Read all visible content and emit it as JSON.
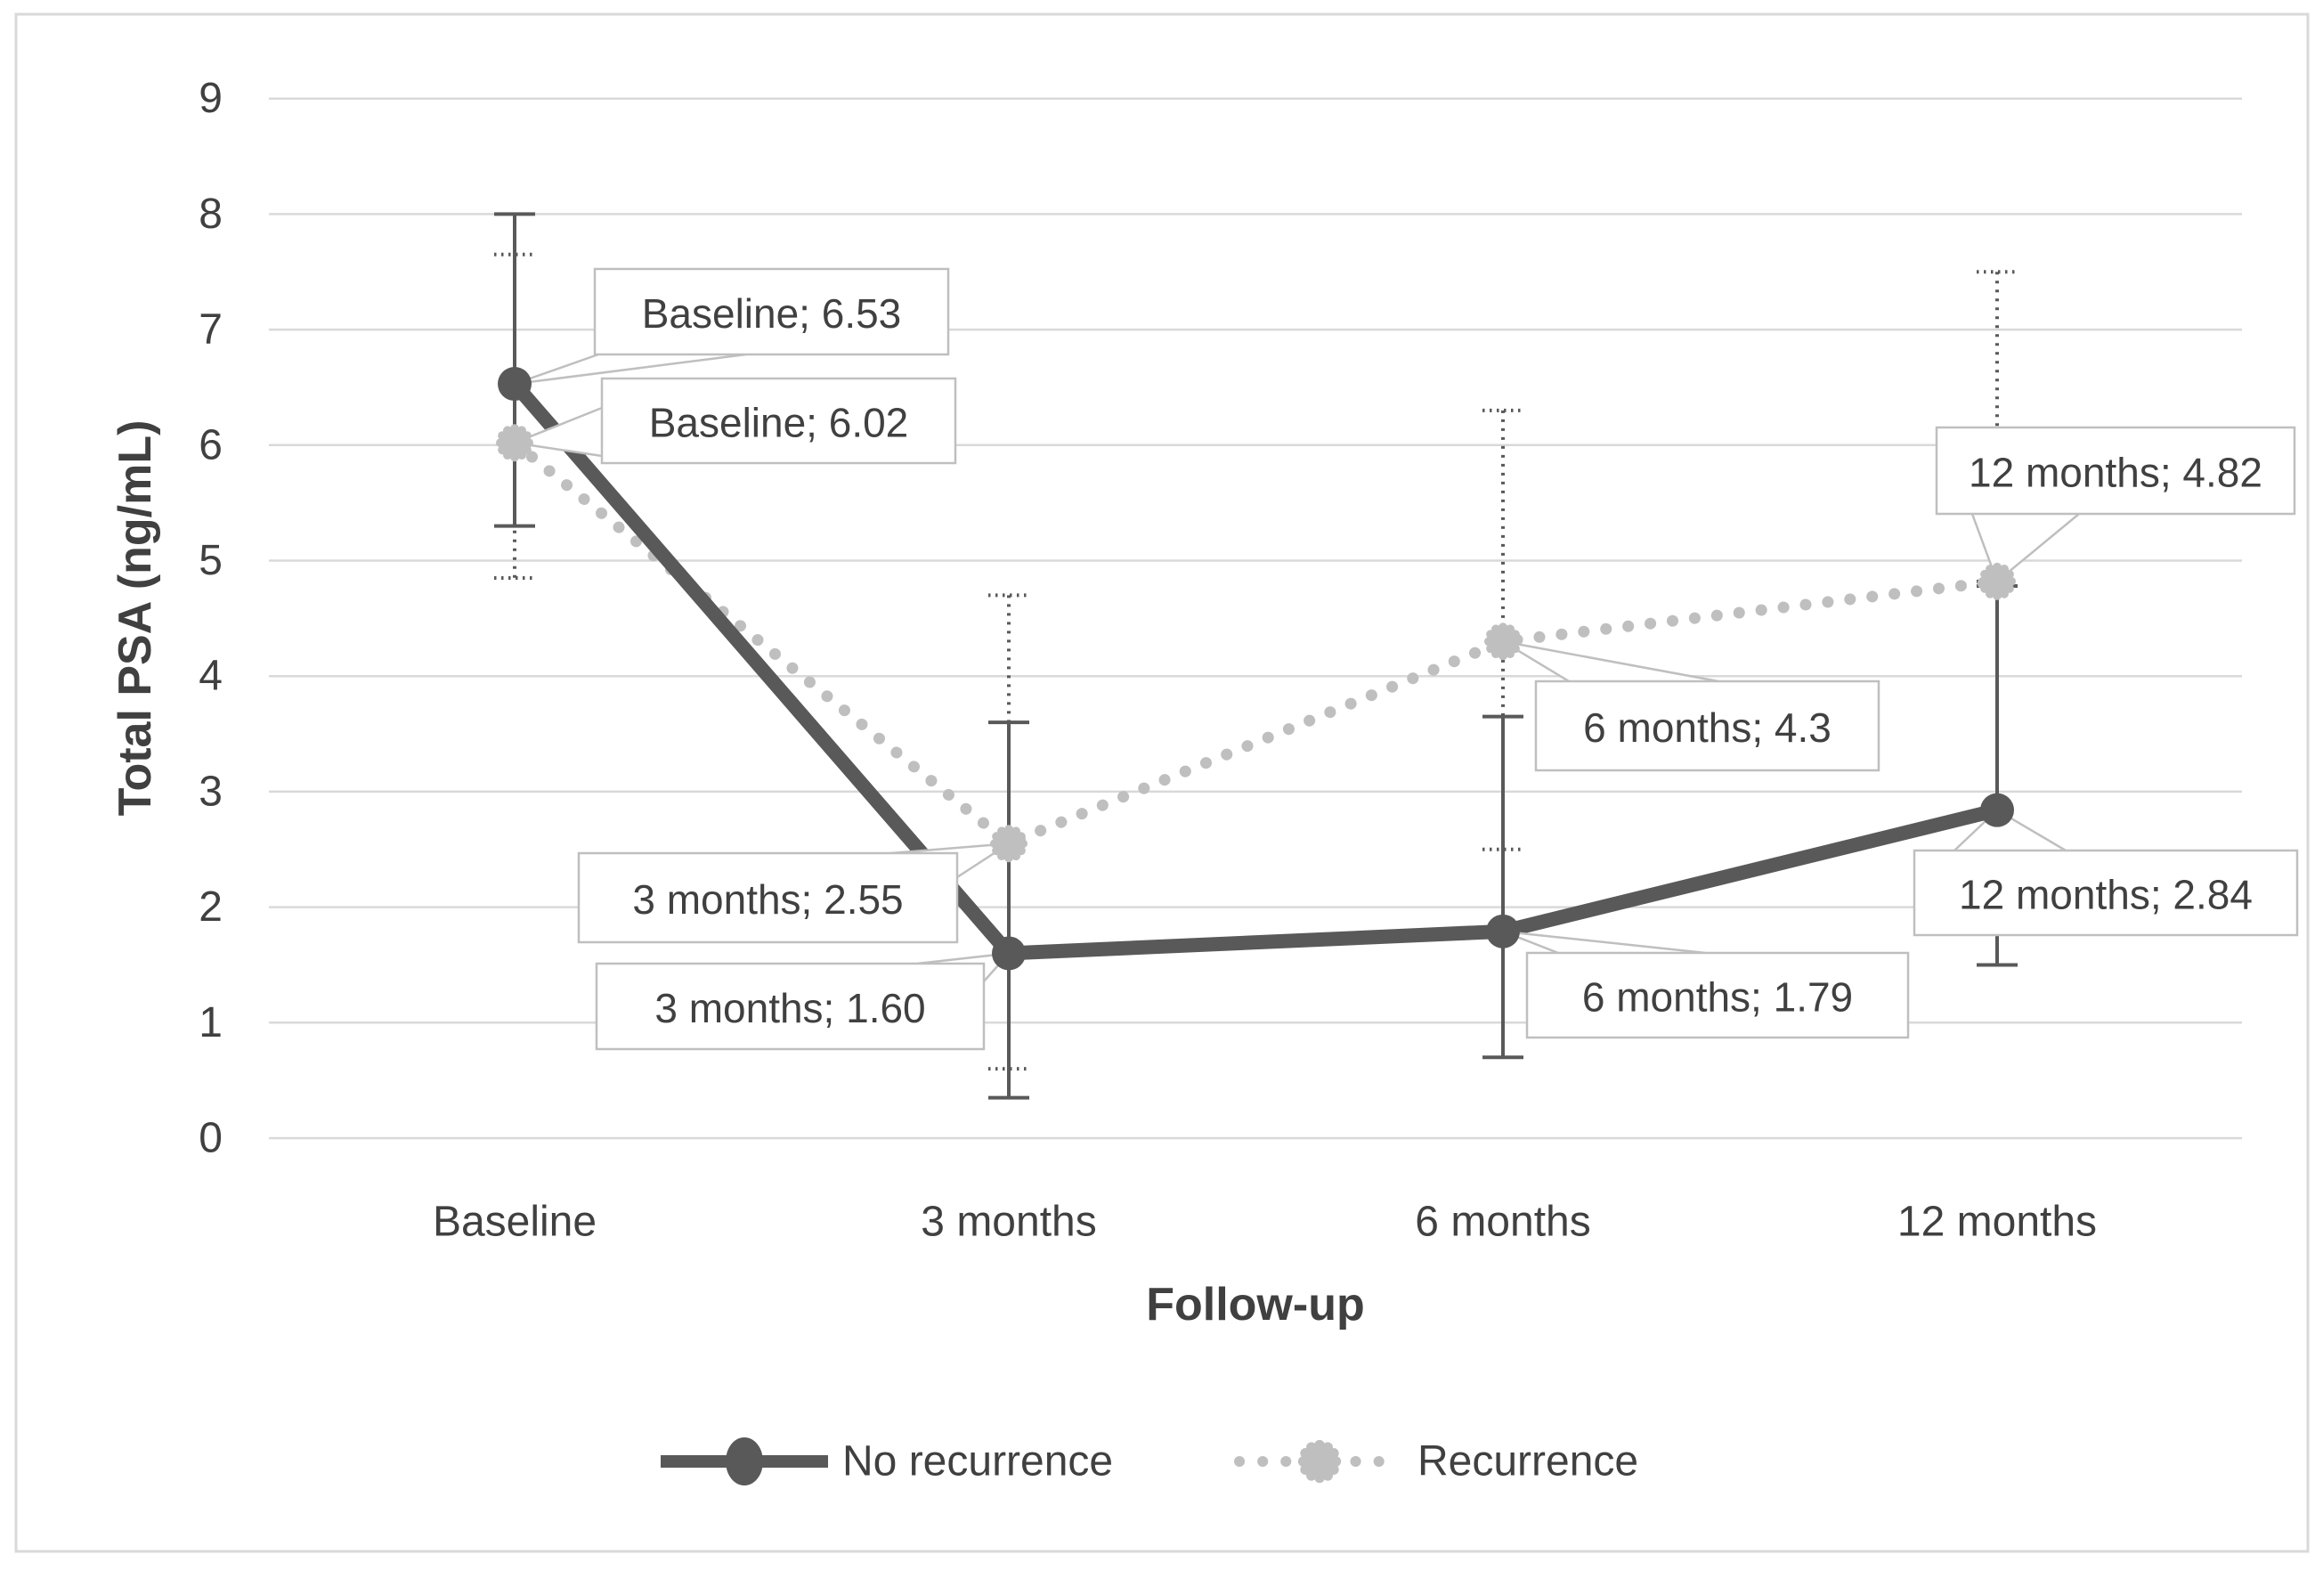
{
  "figure": {
    "kind": "excel-style-line-chart-screenshot",
    "background": "#ffffff",
    "border_color": "#d9d9d9"
  },
  "chart_data": {
    "type": "line",
    "title": "",
    "xlabel": "Follow-up",
    "ylabel": "Total PSA (ng/mL)",
    "categories": [
      "Baseline",
      "3 months",
      "6 months",
      "12 months"
    ],
    "y_axis": {
      "min": 0,
      "max": 9,
      "step": 1,
      "tick_labels": [
        "0",
        "1",
        "2",
        "3",
        "4",
        "5",
        "6",
        "7",
        "8",
        "9"
      ],
      "grid": true
    },
    "grid_color": "#d9d9d9",
    "text_color": "#404040",
    "series": [
      {
        "name": "No recurrence",
        "color": "#595959",
        "line_style": "solid",
        "marker": "circle",
        "values": [
          6.53,
          1.6,
          1.79,
          2.84
        ],
        "error_low": [
          5.3,
          0.35,
          0.7,
          1.5
        ],
        "error_high": [
          8.0,
          3.6,
          3.65,
          4.78
        ],
        "error_style": "solid",
        "error_color": "#595959"
      },
      {
        "name": "Recurrence",
        "color": "#bfbfbf",
        "line_style": "dotted",
        "marker": "fuzzy-circle",
        "values": [
          6.02,
          2.55,
          4.3,
          4.82
        ],
        "error_low": [
          4.85,
          0.6,
          2.5,
          4.82
        ],
        "error_high": [
          7.65,
          4.7,
          6.3,
          7.5
        ],
        "error_style": "dotted",
        "error_color": "#595959"
      }
    ],
    "data_labels": [
      {
        "series": 0,
        "point": 0,
        "text": "Baseline; 6.53"
      },
      {
        "series": 1,
        "point": 0,
        "text": "Baseline; 6.02"
      },
      {
        "series": 1,
        "point": 1,
        "text": "3 months; 2.55"
      },
      {
        "series": 0,
        "point": 1,
        "text": "3 months; 1.60"
      },
      {
        "series": 1,
        "point": 2,
        "text": "6 months; 4.3"
      },
      {
        "series": 0,
        "point": 2,
        "text": "6 months; 1.79"
      },
      {
        "series": 1,
        "point": 3,
        "text": "12 months; 4.82"
      },
      {
        "series": 0,
        "point": 3,
        "text": "12 months; 2.84"
      }
    ],
    "callout_box_color": "#bfbfbf",
    "legend": {
      "position": "bottom",
      "entries": [
        "No recurrence",
        "Recurrence"
      ]
    }
  }
}
